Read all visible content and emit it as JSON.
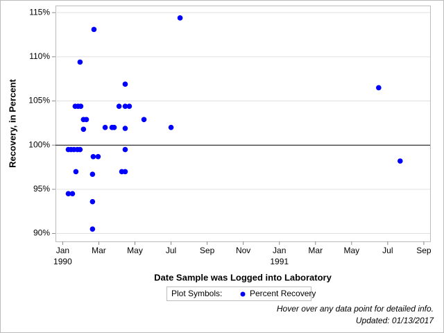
{
  "chart_data": {
    "type": "scatter",
    "xlabel": "Date Sample was Logged into Laboratory",
    "ylabel": "Recovery, in Percent",
    "legend_title": "Plot Symbols:",
    "footnotes": [
      "Hover over any data point for detailed info.",
      "Updated: 01/13/2017"
    ],
    "reference_line": 100,
    "grid": true,
    "xlim": [
      -0.4,
      20.35
    ],
    "ylim": [
      89.1,
      115.8
    ],
    "xticks": [
      {
        "value": 0,
        "label": "Jan"
      },
      {
        "value": 2,
        "label": "Mar"
      },
      {
        "value": 4,
        "label": "May"
      },
      {
        "value": 6,
        "label": "Jul"
      },
      {
        "value": 8,
        "label": "Sep"
      },
      {
        "value": 10,
        "label": "Nov"
      },
      {
        "value": 12,
        "label": "Jan"
      },
      {
        "value": 14,
        "label": "Mar"
      },
      {
        "value": 16,
        "label": "May"
      },
      {
        "value": 18,
        "label": "Jul"
      },
      {
        "value": 20,
        "label": "Sep"
      }
    ],
    "xtick_years": [
      {
        "value": 0,
        "label": "1990"
      },
      {
        "value": 12,
        "label": "1991"
      }
    ],
    "yticks": [
      {
        "value": 90,
        "label": "90%"
      },
      {
        "value": 95,
        "label": "95%"
      },
      {
        "value": 100,
        "label": "100%"
      },
      {
        "value": 105,
        "label": "105%"
      },
      {
        "value": 110,
        "label": "110%"
      },
      {
        "value": 115,
        "label": "115%"
      }
    ],
    "series": [
      {
        "name": "Percent Recovery",
        "color": "#0000ff",
        "x": [
          0.31,
          0.46,
          0.62,
          0.81,
          0.96,
          0.31,
          0.54,
          0.73,
          0.69,
          0.85,
          1.0,
          0.96,
          1.15,
          1.31,
          1.15,
          1.73,
          1.69,
          1.96,
          1.65,
          1.65,
          1.65,
          2.35,
          2.73,
          2.85,
          3.12,
          3.27,
          3.46,
          3.46,
          3.46,
          3.69,
          3.46,
          3.46,
          4.5,
          6.0,
          6.5,
          17.5,
          18.69
        ],
        "values": [
          99.5,
          99.5,
          99.5,
          99.5,
          99.5,
          94.5,
          94.5,
          97.0,
          104.4,
          104.4,
          104.4,
          109.4,
          102.9,
          102.9,
          101.8,
          113.1,
          98.7,
          98.7,
          96.7,
          93.6,
          90.5,
          102.0,
          102.0,
          102.0,
          104.4,
          97.0,
          97.0,
          106.9,
          104.4,
          104.4,
          101.9,
          99.5,
          102.9,
          102.0,
          114.4,
          106.5,
          98.2
        ]
      }
    ]
  }
}
